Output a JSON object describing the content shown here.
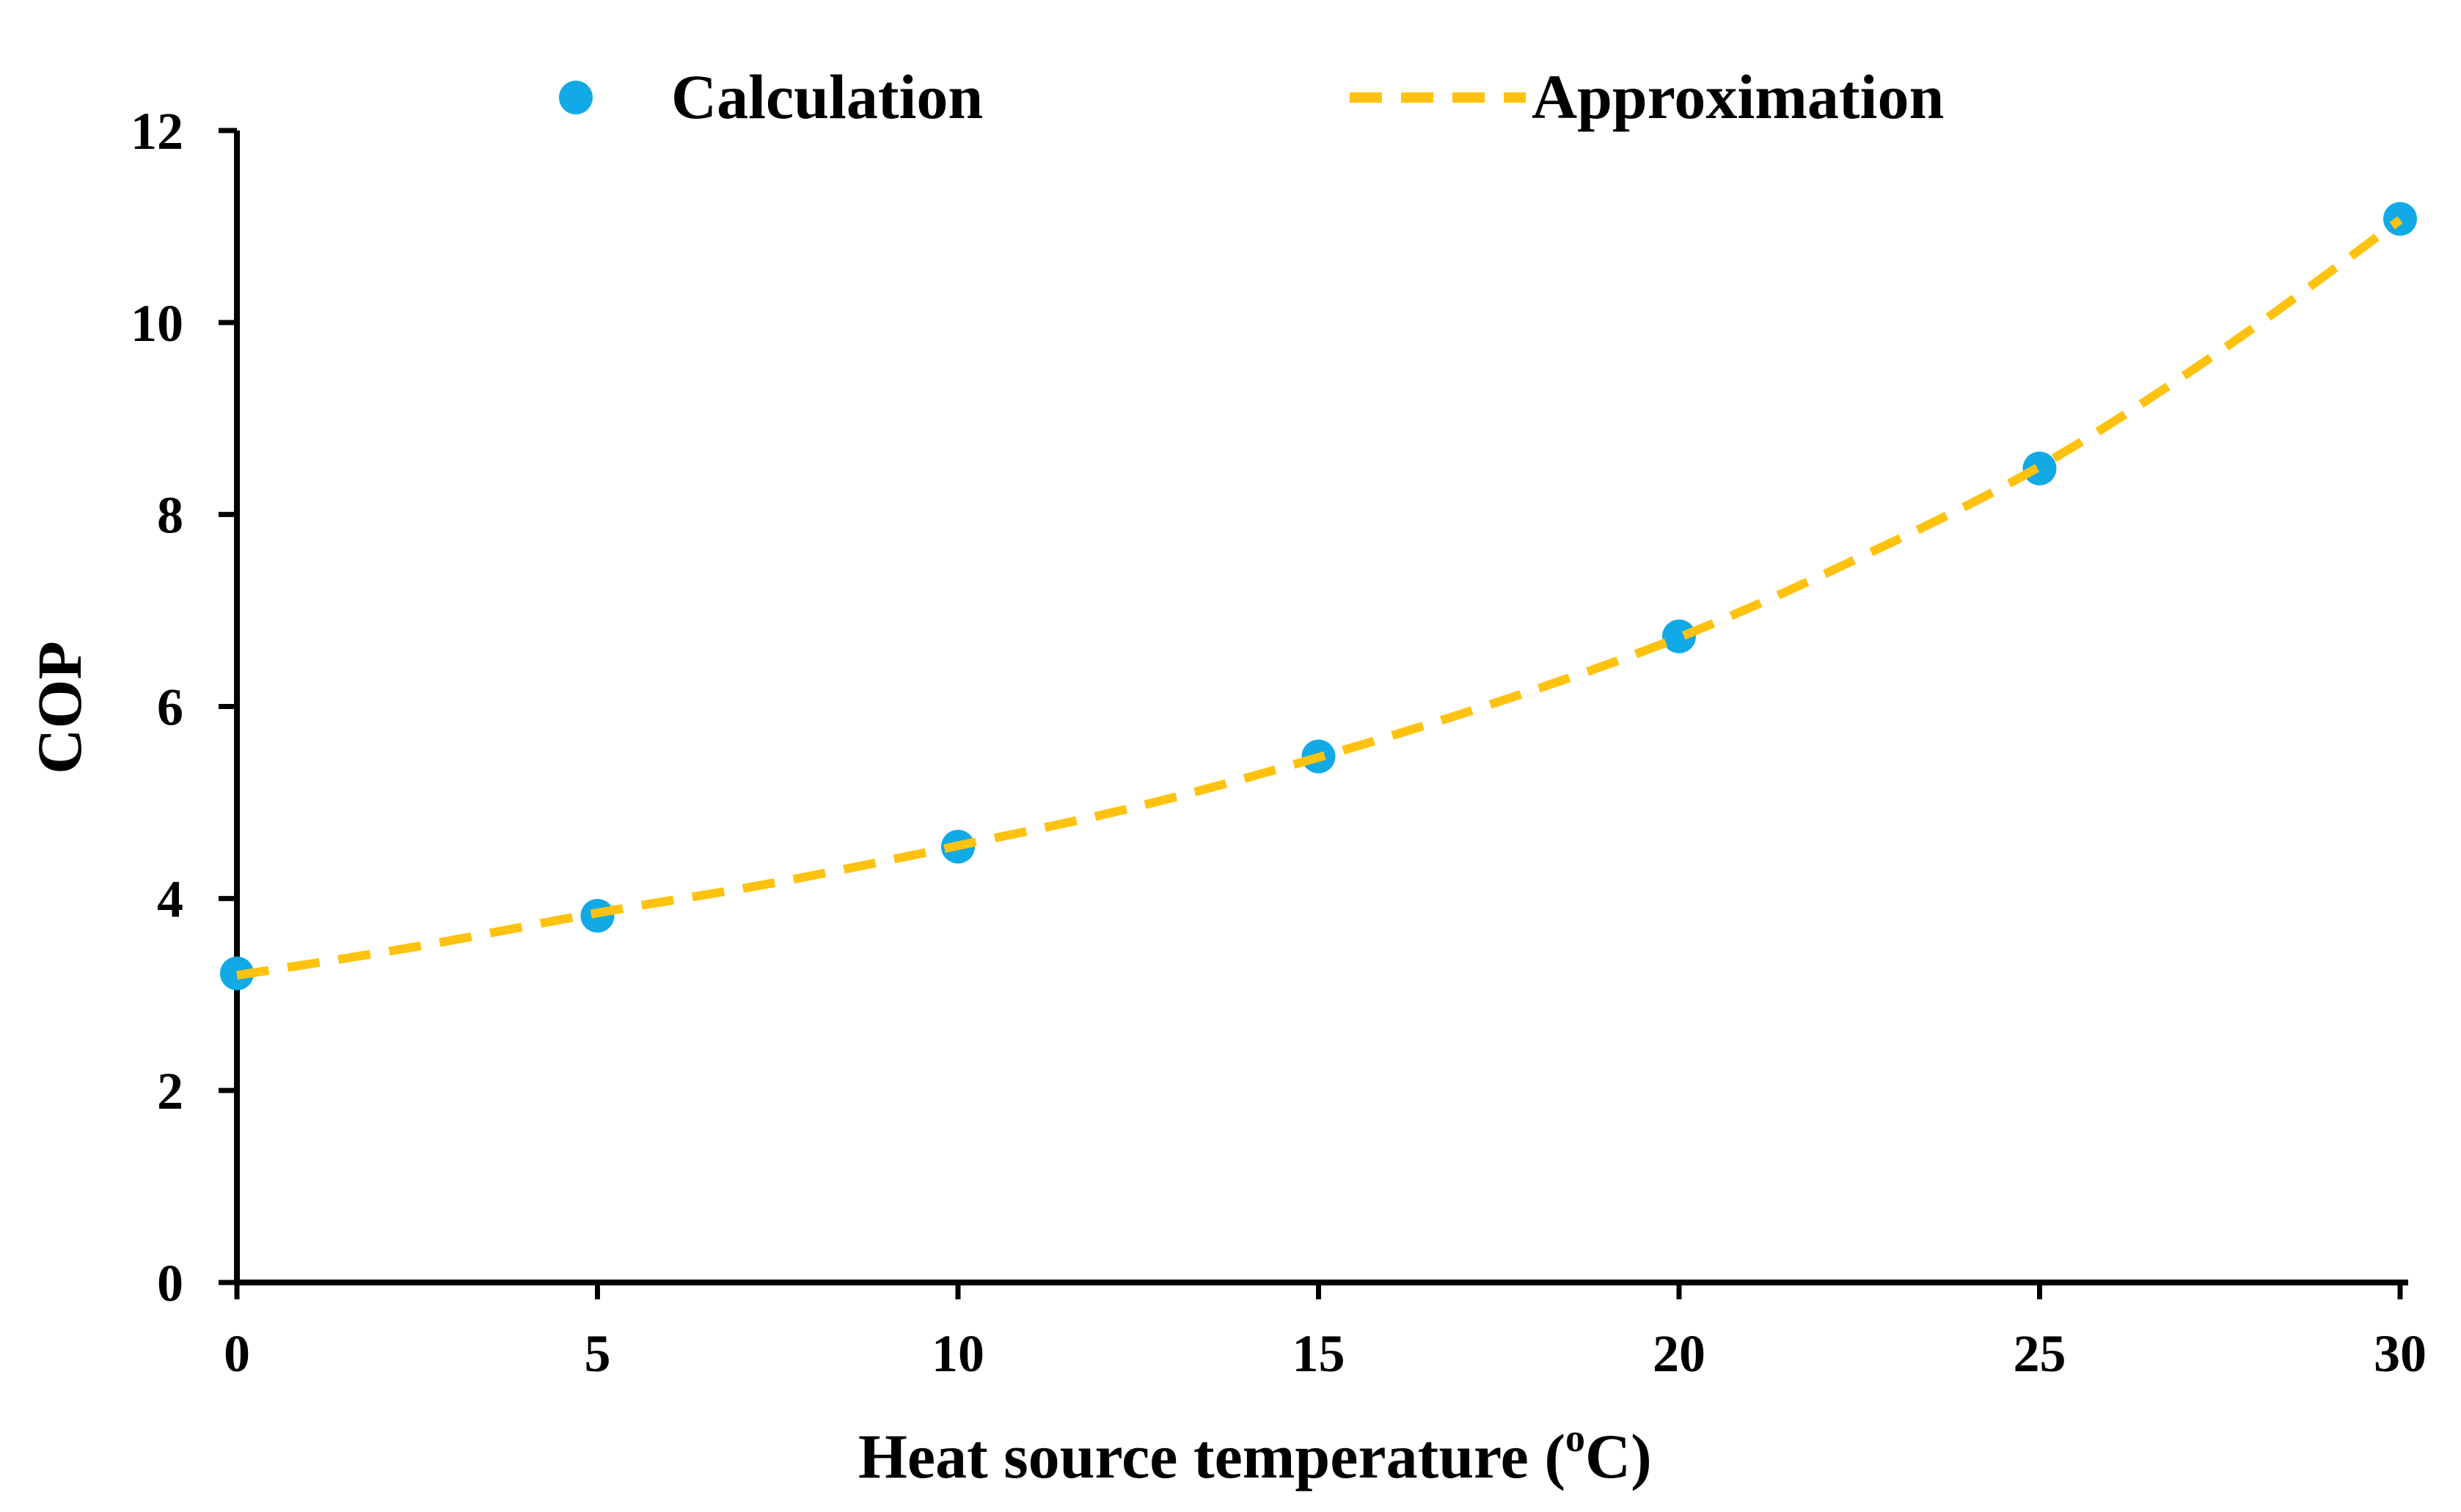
{
  "chart_data": {
    "type": "scatter",
    "title": "",
    "xlabel": "Heat source temperature (",
    "xlabel_superscript": "o",
    "xlabel_suffix": "C)",
    "ylabel": "COP",
    "xlim": [
      0,
      30
    ],
    "ylim": [
      0,
      12
    ],
    "xticks": [
      0,
      5,
      10,
      15,
      20,
      25,
      30
    ],
    "yticks": [
      0,
      2,
      4,
      6,
      8,
      10,
      12
    ],
    "xtick_labels": [
      "0",
      "5",
      "10",
      "15",
      "20",
      "25",
      "30"
    ],
    "ytick_labels": [
      "0",
      "2",
      "4",
      "6",
      "8",
      "10",
      "12"
    ],
    "grid": false,
    "legend_position": "top",
    "series": [
      {
        "name": "Calculation",
        "kind": "scatter",
        "color": "#11a9e6",
        "x": [
          0,
          5,
          10,
          15,
          20,
          25,
          30
        ],
        "y": [
          3.22,
          3.82,
          4.54,
          5.48,
          6.73,
          8.48,
          11.08
        ]
      },
      {
        "name": "Approximation",
        "kind": "dashed-line",
        "color": "#ffc20e",
        "x": [
          0,
          2.5,
          5,
          7.5,
          10,
          12.5,
          15,
          17.5,
          20,
          22.5,
          25,
          27.5,
          30
        ],
        "y": [
          3.2,
          3.5,
          3.85,
          4.17,
          4.55,
          4.96,
          5.47,
          6.05,
          6.72,
          7.55,
          8.5,
          9.7,
          11.07
        ]
      }
    ]
  }
}
